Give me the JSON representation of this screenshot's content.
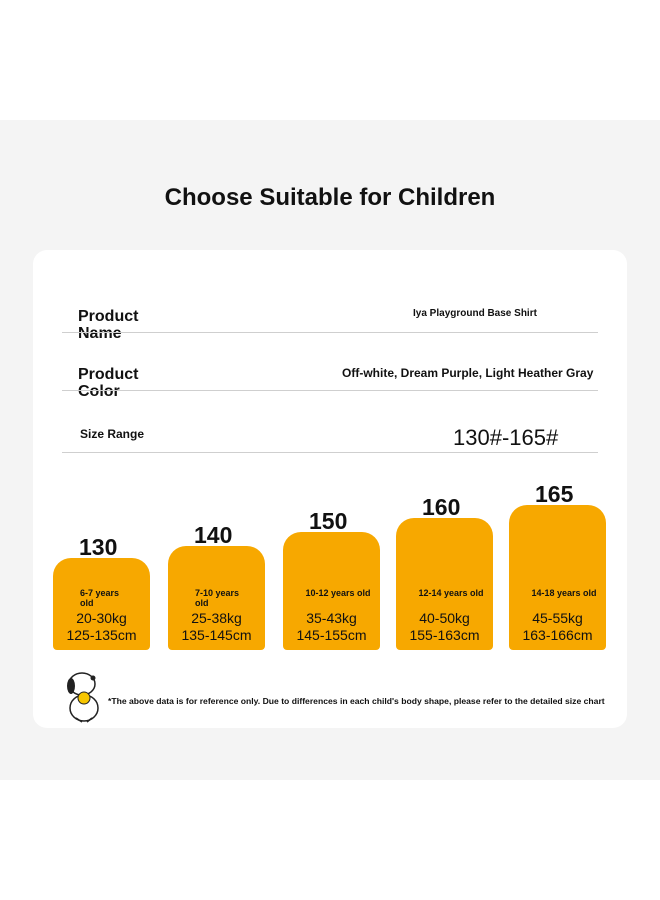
{
  "title": "Choose Suitable for Children",
  "rows": [
    {
      "label": "Product Name",
      "value": "Iya Playground Base Shirt"
    },
    {
      "label": "Product Color",
      "value": "Off-white, Dream Purple, Light Heather Gray"
    },
    {
      "label": "Size Range",
      "value": "130#-165#"
    }
  ],
  "sizes": [
    {
      "size": "130",
      "age": "6-7 years old",
      "weight": "20-30kg",
      "height": "125-135cm"
    },
    {
      "size": "140",
      "age": "7-10 years old",
      "weight": "25-38kg",
      "height": "135-145cm"
    },
    {
      "size": "150",
      "age": "10-12 years old",
      "weight": "35-43kg",
      "height": "145-155cm"
    },
    {
      "size": "160",
      "age": "12-14 years old",
      "weight": "40-50kg",
      "height": "155-163cm"
    },
    {
      "size": "165",
      "age": "14-18 years old",
      "weight": "45-55kg",
      "height": "163-166cm"
    }
  ],
  "footnote": "*The above data is for reference only. Due to differences in each child's body shape, please refer to the detailed size chart"
}
